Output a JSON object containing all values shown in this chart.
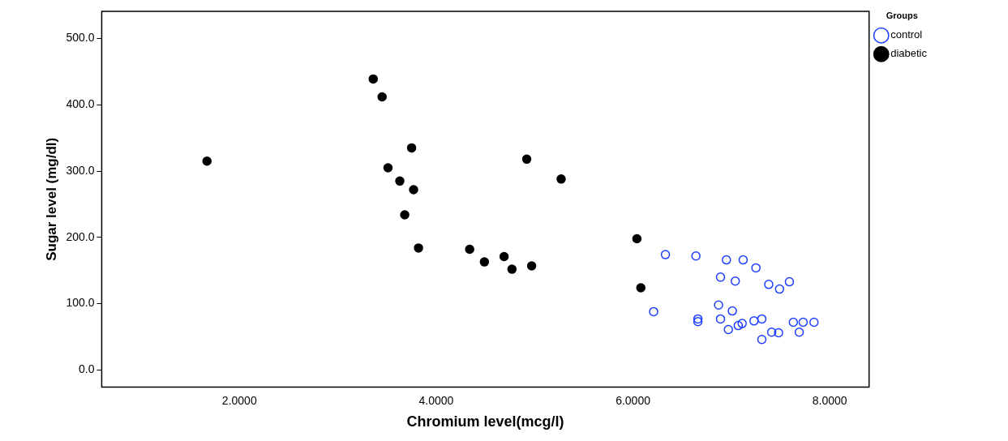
{
  "chart_data": {
    "type": "scatter",
    "xlabel": "Chromium level(mcg/l)",
    "ylabel": "Sugar level (mg/dl)",
    "legend_title": "Groups",
    "xlim": [
      0.6,
      8.4
    ],
    "ylim": [
      -26,
      541
    ],
    "xticks": [
      {
        "value": 2,
        "label": "2.0000"
      },
      {
        "value": 4,
        "label": "4.0000"
      },
      {
        "value": 6,
        "label": "6.0000"
      },
      {
        "value": 8,
        "label": "8.0000"
      }
    ],
    "yticks": [
      {
        "value": 0,
        "label": "0.0"
      },
      {
        "value": 100,
        "label": "100.0"
      },
      {
        "value": 200,
        "label": "200.0"
      },
      {
        "value": 300,
        "label": "300.0"
      },
      {
        "value": 400,
        "label": "400.0"
      },
      {
        "value": 500,
        "label": "500.0"
      }
    ],
    "grid": false,
    "legend": "top right",
    "marker": "circle",
    "series": [
      {
        "name": "control",
        "color": "#1f3fff",
        "x": [
          6.33,
          6.64,
          6.95,
          7.12,
          7.25,
          6.89,
          7.04,
          7.38,
          7.49,
          7.59,
          6.21,
          6.66,
          6.66,
          6.87,
          7.01,
          6.89,
          6.97,
          7.07,
          7.11,
          7.23,
          7.31,
          7.41,
          7.48,
          7.31,
          7.63,
          7.73,
          7.84,
          7.69
        ],
        "values": [
          174,
          172,
          166,
          166,
          154,
          140,
          134,
          129,
          122,
          133,
          88,
          77,
          73,
          98,
          89,
          77,
          61,
          67,
          70,
          74,
          77,
          57,
          56,
          46,
          72,
          72,
          72,
          57
        ]
      },
      {
        "name": "diabetic",
        "color": "#000000",
        "x": [
          1.67,
          3.36,
          3.45,
          3.51,
          3.63,
          3.68,
          3.75,
          3.77,
          3.82,
          4.34,
          4.49,
          4.69,
          4.77,
          4.92,
          4.97,
          5.27,
          6.04,
          6.08
        ],
        "values": [
          315,
          439,
          412,
          305,
          285,
          234,
          335,
          272,
          184,
          182,
          163,
          171,
          152,
          318,
          157,
          288,
          198,
          124
        ]
      }
    ]
  }
}
